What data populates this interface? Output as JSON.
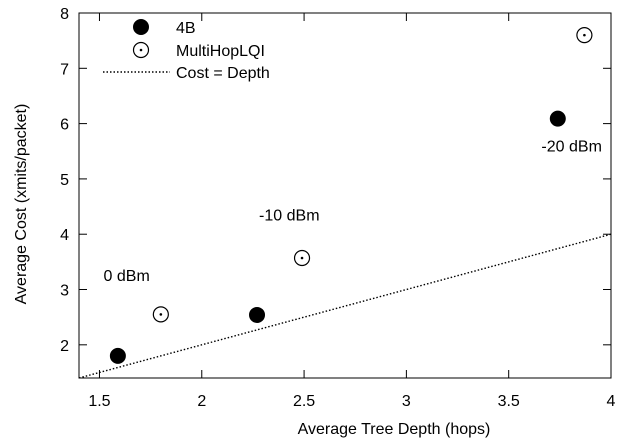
{
  "chart_data": {
    "type": "scatter",
    "title": "",
    "xlabel": "Average Tree Depth (hops)",
    "ylabel": "Average Cost (xmits/packet)",
    "xlim": [
      1.4,
      4.0
    ],
    "ylim": [
      1.4,
      8.0
    ],
    "xticks": [
      1.5,
      2,
      2.5,
      3,
      3.5,
      4
    ],
    "xtick_labels": [
      "1.5",
      "2",
      "2.5",
      "3",
      "3.5",
      "4"
    ],
    "yticks": [
      2,
      3,
      4,
      5,
      6,
      7,
      8
    ],
    "ytick_labels": [
      "2",
      "3",
      "4",
      "5",
      "6",
      "7",
      "8"
    ],
    "grid": false,
    "legend_position": "top-left",
    "series": [
      {
        "name": "4B",
        "marker": "filled-circle",
        "color": "#000000",
        "points": [
          {
            "x": 1.59,
            "y": 1.8
          },
          {
            "x": 2.27,
            "y": 2.54
          },
          {
            "x": 3.74,
            "y": 6.09
          }
        ]
      },
      {
        "name": "MultiHopLQI",
        "marker": "open-circle-dot",
        "color": "#000000",
        "points": [
          {
            "x": 1.8,
            "y": 2.55
          },
          {
            "x": 2.49,
            "y": 3.57
          },
          {
            "x": 3.87,
            "y": 7.6
          }
        ]
      },
      {
        "name": "Cost = Depth",
        "marker": "dotted-line",
        "color": "#000000",
        "points": [
          {
            "x": 1.4,
            "y": 1.4
          },
          {
            "x": 4.0,
            "y": 4.0
          }
        ]
      }
    ],
    "annotations": [
      {
        "text": "0 dBm",
        "x": 1.52,
        "y": 3.15
      },
      {
        "text": "-10 dBm",
        "x": 2.28,
        "y": 4.25
      },
      {
        "text": "-20 dBm",
        "x": 3.66,
        "y": 5.5
      }
    ]
  }
}
